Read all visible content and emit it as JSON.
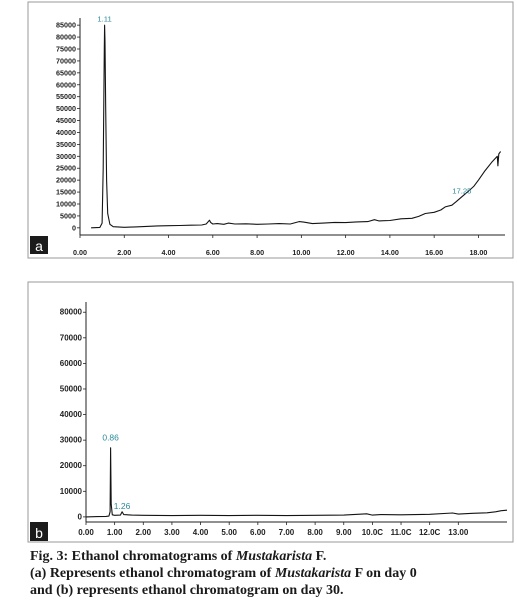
{
  "chart_data": [
    {
      "type": "line",
      "panel_label": "a",
      "y_ticks": [
        0,
        5000,
        10000,
        15000,
        20000,
        25000,
        30000,
        35000,
        40000,
        45000,
        50000,
        55000,
        60000,
        65000,
        70000,
        75000,
        80000,
        85000
      ],
      "y_tick_labels": [
        "0",
        "5000",
        "10000",
        "15000",
        "20000",
        "25000",
        "30000",
        "35000",
        "40000",
        "45000",
        "50000",
        "55000",
        "60000",
        "65000",
        "70000",
        "75000",
        "80000",
        "85000"
      ],
      "x_ticks": [
        0,
        2,
        4,
        6,
        8,
        10,
        12,
        14,
        16,
        18
      ],
      "x_tick_labels": [
        "0.00",
        "2.00",
        "4.00",
        "6.00",
        "8.00",
        "10.00",
        "12.00",
        "14.00",
        "16.00",
        "18.00"
      ],
      "xlim": [
        0,
        19.2
      ],
      "ylim": [
        -3000,
        88000
      ],
      "annotations": [
        {
          "text": "1.11",
          "x": 1.11,
          "y": 86500
        },
        {
          "text": "17.25",
          "x": 17.25,
          "y": 14500
        }
      ],
      "series": [
        {
          "x": [
            0.5,
            0.9,
            1.0,
            1.05,
            1.1,
            1.11,
            1.13,
            1.16,
            1.2,
            1.25,
            1.35,
            1.5,
            1.8,
            2.0,
            2.5,
            3.0,
            3.5,
            4.0,
            4.5,
            5.0,
            5.5,
            5.7,
            5.85,
            5.9,
            6.0,
            6.2,
            6.5,
            6.7,
            7.0,
            7.5,
            8.0,
            8.5,
            9.0,
            9.5,
            9.9,
            10.1,
            10.5,
            11.0,
            11.5,
            12.0,
            12.5,
            13.0,
            13.3,
            13.5,
            14.0,
            14.5,
            15.0,
            15.3,
            15.6,
            16.0,
            16.3,
            16.5,
            16.8,
            17.0,
            17.25,
            17.5,
            17.8,
            18.0,
            18.3,
            18.6,
            18.85,
            18.88,
            18.92,
            19.0
          ],
          "values": [
            0,
            200,
            2000,
            25000,
            75000,
            85000,
            78000,
            50000,
            20000,
            6000,
            1500,
            500,
            300,
            250,
            400,
            600,
            800,
            900,
            1000,
            1100,
            1200,
            1600,
            3200,
            2300,
            1600,
            1800,
            1500,
            2000,
            1600,
            1700,
            1500,
            1600,
            1800,
            1600,
            2600,
            2400,
            1800,
            2000,
            2300,
            2200,
            2500,
            2600,
            3400,
            2900,
            3100,
            3800,
            4000,
            4800,
            6000,
            6500,
            7500,
            8800,
            9500,
            11000,
            13000,
            15000,
            17500,
            20000,
            24000,
            27500,
            30000,
            26000,
            31000,
            32000
          ]
        }
      ]
    },
    {
      "type": "line",
      "panel_label": "b",
      "y_ticks": [
        0,
        10000,
        20000,
        30000,
        40000,
        50000,
        60000,
        70000,
        80000
      ],
      "y_tick_labels": [
        "0",
        "10000",
        "20000",
        "30000",
        "40000",
        "50000",
        "60000",
        "70000",
        "80000"
      ],
      "x_ticks": [
        0,
        1,
        2,
        3,
        4,
        5,
        6,
        7,
        8,
        9,
        10,
        11,
        12,
        13
      ],
      "x_tick_labels": [
        "0.00",
        "1.00",
        "2.00",
        "3.00",
        "4.00",
        "5.00",
        "6.00",
        "7.00",
        "8.00",
        "9.00",
        "10.0C",
        "11.0C",
        "12.0C",
        "13.00"
      ],
      "xlim": [
        0,
        14.7
      ],
      "ylim": [
        -2000,
        84000
      ],
      "annotations": [
        {
          "text": "0.86",
          "x": 0.86,
          "y": 29800
        },
        {
          "text": "1.26",
          "x": 1.26,
          "y": 3000
        }
      ],
      "series": [
        {
          "x": [
            0.0,
            0.4,
            0.7,
            0.8,
            0.84,
            0.86,
            0.88,
            0.92,
            1.0,
            1.2,
            1.26,
            1.32,
            1.6,
            2.0,
            3.0,
            4.0,
            5.0,
            6.0,
            7.0,
            8.0,
            9.0,
            9.8,
            10.0,
            10.3,
            11.0,
            12.0,
            12.8,
            13.0,
            13.5,
            14.0,
            14.3,
            14.5,
            14.7
          ],
          "values": [
            0,
            100,
            200,
            300,
            2000,
            27000,
            5000,
            800,
            600,
            700,
            2000,
            900,
            700,
            600,
            500,
            600,
            500,
            600,
            500,
            600,
            700,
            1200,
            700,
            900,
            800,
            1000,
            1500,
            1100,
            1400,
            1600,
            2000,
            2400,
            2600
          ]
        }
      ]
    }
  ],
  "caption": {
    "line1_prefix": "Fig. 3: Ethanol chromatograms of ",
    "line1_italic": "Mustakarista",
    "line1_suffix": " F.",
    "line2_prefix": "(a) Represents ethanol chromatogram of ",
    "line2_italic": "Mustakarista",
    "line2_suffix": " F on day 0",
    "line3": "and (b) represents ethanol chromatogram on day 30."
  },
  "colors": {
    "trace": "#141414",
    "annotation": "#2a8a9a",
    "panel_label_bg": "#1b1b1b"
  }
}
